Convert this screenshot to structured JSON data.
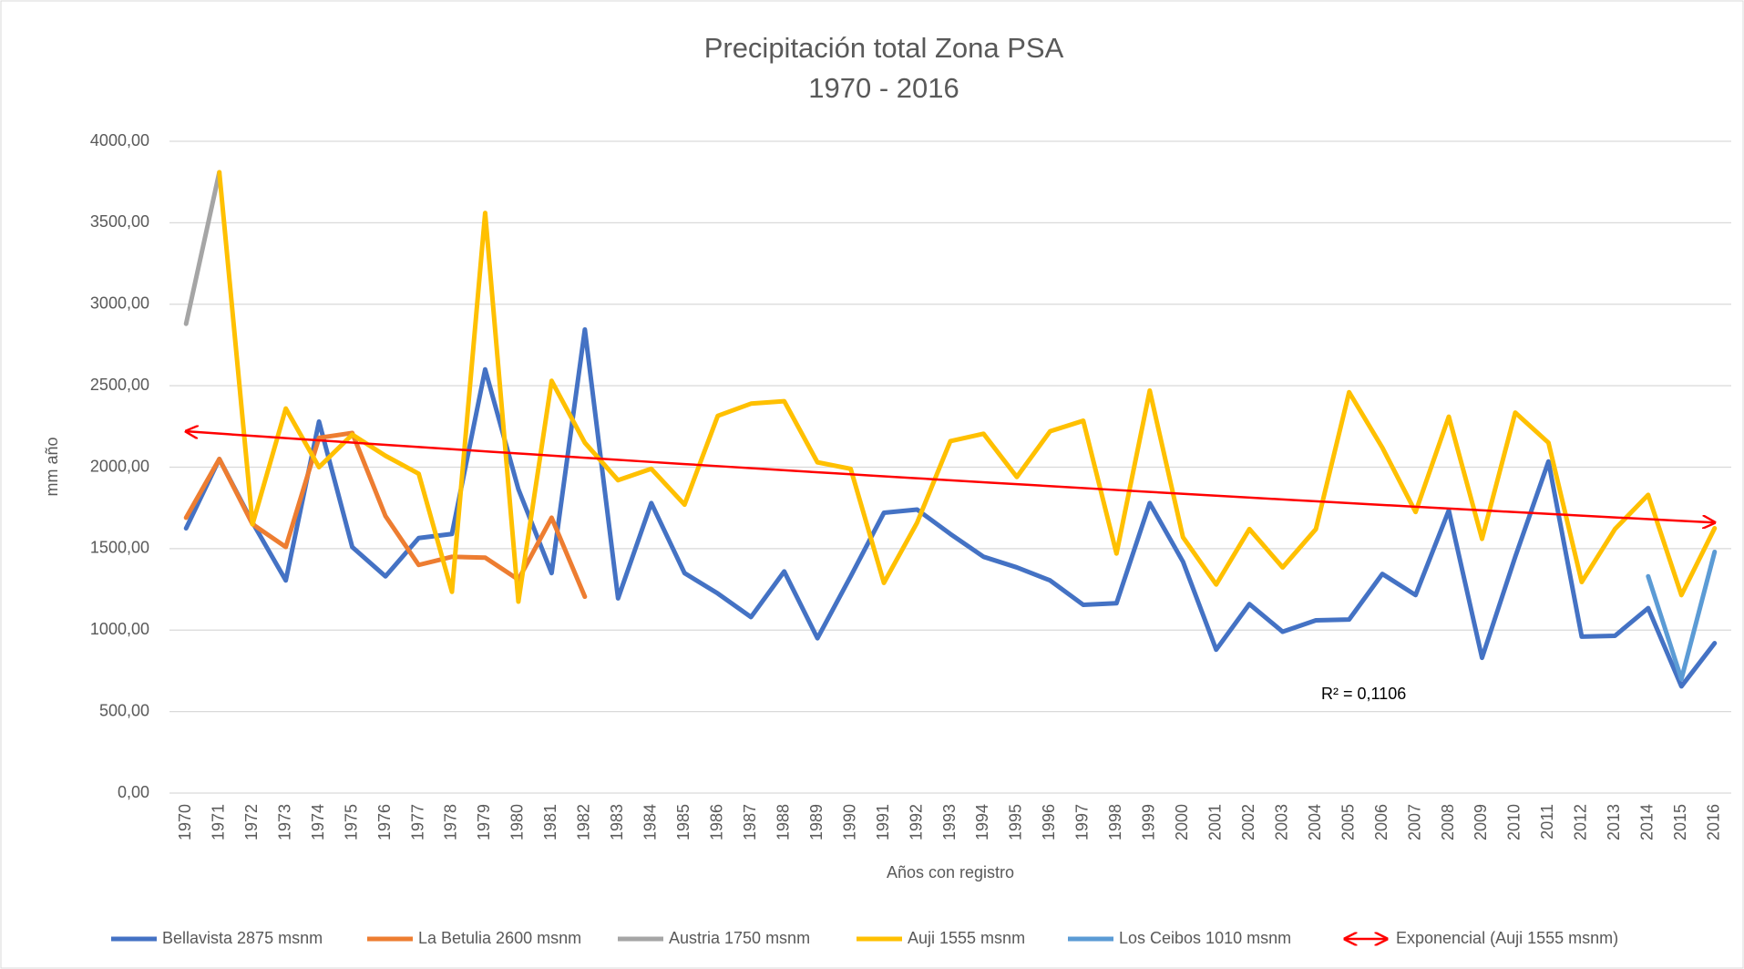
{
  "chart_data": {
    "type": "line",
    "title": "Precipitación total Zona PSA",
    "subtitle": "1970 - 2016",
    "x_label": "Años con registro",
    "y_label": "mm año",
    "categories": [
      "1970",
      "1971",
      "1972",
      "1973",
      "1974",
      "1975",
      "1976",
      "1977",
      "1978",
      "1979",
      "1980",
      "1981",
      "1982",
      "1983",
      "1984",
      "1985",
      "1986",
      "1987",
      "1988",
      "1989",
      "1990",
      "1991",
      "1992",
      "1993",
      "1994",
      "1995",
      "1996",
      "1997",
      "1998",
      "1999",
      "2000",
      "2001",
      "2002",
      "2003",
      "2004",
      "2005",
      "2006",
      "2007",
      "2008",
      "2009",
      "2010",
      "2011",
      "2012",
      "2013",
      "2014",
      "2015",
      "2016"
    ],
    "series": [
      {
        "name": "Bellavista 2875 msnm",
        "color": "#4472c4",
        "values": [
          1625,
          2050,
          1660,
          1305,
          2280,
          1510,
          1330,
          1565,
          1590,
          2600,
          1865,
          1350,
          2845,
          1195,
          1780,
          1350,
          1225,
          1080,
          1360,
          950,
          1330,
          1720,
          1740,
          1590,
          1450,
          1385,
          1305,
          1155,
          1165,
          1780,
          1420,
          880,
          1160,
          990,
          1060,
          1065,
          1345,
          1215,
          1735,
          830,
          1450,
          2035,
          960,
          965,
          1135,
          655,
          920
        ]
      },
      {
        "name": "La Betulia 2600 msnm",
        "color": "#ed7d31",
        "values": [
          1690,
          2050,
          1650,
          1510,
          2180,
          2210,
          1700,
          1400,
          1450,
          1445,
          1310,
          1690,
          1205,
          null,
          null,
          null,
          null,
          null,
          null,
          null,
          null,
          null,
          null,
          null,
          null,
          null,
          null,
          null,
          null,
          null,
          null,
          null,
          null,
          null,
          null,
          null,
          null,
          null,
          null,
          null,
          null,
          null,
          null,
          null,
          null,
          null,
          null
        ]
      },
      {
        "name": "Austria 1750 msnm",
        "color": "#a5a5a5",
        "values": [
          2880,
          3810,
          null,
          null,
          null,
          null,
          null,
          null,
          null,
          null,
          null,
          null,
          null,
          null,
          null,
          null,
          null,
          null,
          null,
          null,
          null,
          null,
          null,
          null,
          null,
          null,
          null,
          null,
          null,
          null,
          null,
          null,
          null,
          null,
          null,
          null,
          null,
          null,
          null,
          null,
          null,
          null,
          null,
          null,
          null,
          null,
          null
        ]
      },
      {
        "name": "Auji 1555 msnm",
        "color": "#ffc000",
        "values": [
          null,
          3810,
          1650,
          2360,
          2000,
          2200,
          2070,
          1960,
          1235,
          3560,
          1175,
          2530,
          2150,
          1920,
          1990,
          1770,
          2315,
          2390,
          2405,
          2030,
          1990,
          1290,
          1660,
          2160,
          2205,
          1940,
          2220,
          2285,
          1470,
          2470,
          1570,
          1280,
          1620,
          1385,
          1620,
          2460,
          2120,
          1725,
          2310,
          1560,
          2335,
          2150,
          1295,
          1620,
          1830,
          1215,
          1625
        ]
      },
      {
        "name": "Los Ceibos 1010 msnm",
        "color": "#5b9bd5",
        "values": [
          null,
          null,
          null,
          null,
          null,
          null,
          null,
          null,
          null,
          null,
          null,
          null,
          null,
          null,
          null,
          null,
          null,
          null,
          null,
          null,
          null,
          null,
          null,
          null,
          null,
          null,
          null,
          null,
          null,
          null,
          null,
          null,
          null,
          null,
          null,
          null,
          null,
          null,
          null,
          null,
          null,
          null,
          null,
          null,
          1330,
          700,
          1480
        ]
      }
    ],
    "trendline": {
      "name": "Exponencial (Auji 1555 msnm)",
      "color": "#ff0000",
      "start": 2220,
      "end": 1660,
      "annotation": "R² = 0,1106"
    },
    "ylim": [
      0,
      4000
    ],
    "yticks": [
      {
        "value": 0,
        "label": "0,00"
      },
      {
        "value": 500,
        "label": "500,00"
      },
      {
        "value": 1000,
        "label": "1000,00"
      },
      {
        "value": 1500,
        "label": "1500,00"
      },
      {
        "value": 2000,
        "label": "2000,00"
      },
      {
        "value": 2500,
        "label": "2500,00"
      },
      {
        "value": 3000,
        "label": "3000,00"
      },
      {
        "value": 3500,
        "label": "3500,00"
      },
      {
        "value": 4000,
        "label": "4000,00"
      }
    ],
    "grid": true,
    "legend": "bottom"
  }
}
